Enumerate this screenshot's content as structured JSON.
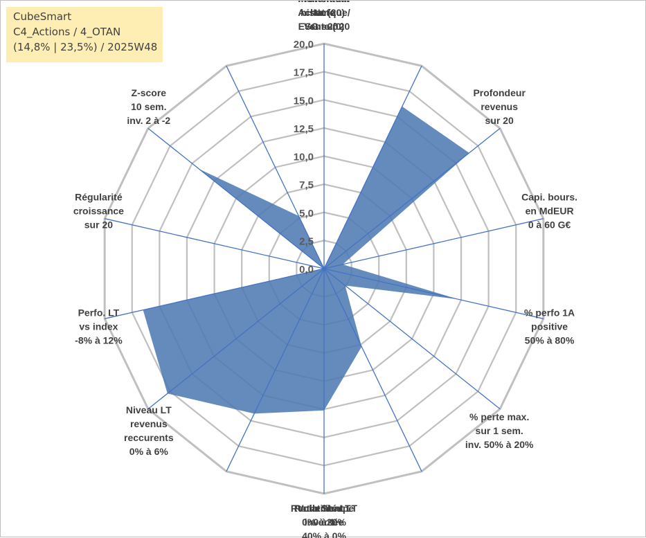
{
  "info_box": {
    "line1": "CubeSmart",
    "line2": "C4_Actions / 4_OTAN",
    "line3": "(14,8% | 23,5%) / 2025W48"
  },
  "colors": {
    "ring": "#bfbfbf",
    "spoke": "#4472c4",
    "fill": "#4f7bb3",
    "info_box_bg": "#ffeeb4"
  },
  "chart_data": {
    "type": "radar",
    "title": "",
    "rlim": [
      0,
      20
    ],
    "tick_step": 2.5,
    "grid": true,
    "tick_labels": [
      "0,0",
      "2,5",
      "5,0",
      "7,5",
      "10,0",
      "12,5",
      "15,0",
      "17,5",
      "20,0"
    ],
    "axes": [
      {
        "label": [
          "Note",
          "ESG sur 20"
        ],
        "value": 0
      },
      {
        "label": [
          "Profondeur",
          "historique",
          "sur 20"
        ],
        "value": 16
      },
      {
        "label": [
          "Profondeur",
          "revenus",
          "sur 20"
        ],
        "value": 16.5
      },
      {
        "label": [
          "Capi. bours.",
          "en MdEUR",
          "0 à 60 G€"
        ],
        "value": 1.7
      },
      {
        "label": [
          "% perfo 1A",
          "positive",
          "50% à 80%"
        ],
        "value": 12.2
      },
      {
        "label": [
          "% perte max.",
          "sur 1 sem.",
          "inv. 50% à 20%"
        ],
        "value": 2.4
      },
      {
        "label": [
          "Volatilité LT",
          "inversée",
          "40% à 0%"
        ],
        "value": 7.7
      },
      {
        "label": [
          "Ratio Sharpe",
          "0 à 1"
        ],
        "value": 12.6
      },
      {
        "label": [
          "Rendement LT",
          "0% à 20%"
        ],
        "value": 14.3
      },
      {
        "label": [
          "Niveau LT",
          "revenus",
          "reccurents",
          "0% à 6%"
        ],
        "value": 17.8
      },
      {
        "label": [
          "Perfo. LT",
          "vs index",
          "-8% à 12%"
        ],
        "value": 16.5
      },
      {
        "label": [
          "Régularité",
          "croissance",
          "sur 20"
        ],
        "value": 0
      },
      {
        "label": [
          "Z-score",
          "10 sem.",
          "inv. 2 à -2"
        ],
        "value": 14.2
      },
      {
        "label": [
          "Momentum",
          "Achat (20) /",
          "Vente (0)"
        ],
        "value": 5.2
      }
    ]
  }
}
